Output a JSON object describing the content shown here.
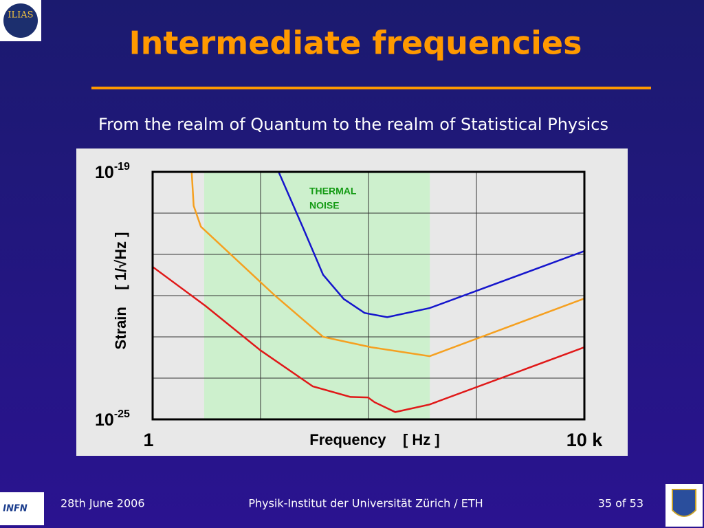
{
  "slide": {
    "title": "Intermediate frequencies",
    "subtitle": "From the realm of Quantum to the realm of Statistical Physics",
    "footer_left": "28th June 2006",
    "footer_center": "Physik-Institut der Universität Zürich / ETH",
    "footer_right": "35 of 53",
    "logo_top": "ILIAS",
    "logo_bottom_left": "INFN"
  },
  "chart_data": {
    "type": "line",
    "xlabel": "Frequency    [ Hz ]",
    "ylabel": "Strain    [ 1/√Hz ]",
    "xscale": "log",
    "yscale": "log",
    "xlim": [
      1,
      10000
    ],
    "ylim": [
      1e-25,
      1e-19
    ],
    "xticks": [
      1,
      {
        "value": 10000,
        "label": "10 k"
      }
    ],
    "yticks": [
      {
        "value": 1e-25,
        "label": "10",
        "sup": "-25"
      },
      {
        "value": 1e-19,
        "label": "10",
        "sup": "-19"
      }
    ],
    "xgrid": [
      10,
      100,
      1000
    ],
    "ygrid": [
      1e-24,
      1e-23,
      1e-22,
      1e-21,
      1e-20
    ],
    "grid": true,
    "band": {
      "xrange": [
        3,
        370
      ],
      "color": "#cdf0cd",
      "label": [
        "THERMAL",
        "NOISE"
      ],
      "label_color": "#139a13"
    },
    "series": [
      {
        "color": "#1515cc",
        "x": [
          14.7,
          24.5,
          38,
          59,
          92,
          149,
          369,
          10000
        ],
        "values": [
          1e-19,
          4.7e-21,
          3.2e-22,
          8.3e-23,
          3.8e-23,
          3e-23,
          5e-23,
          1.2e-21
        ]
      },
      {
        "color": "#f5a020",
        "x": [
          2.3,
          2.4,
          2.8,
          4.9,
          13.6,
          38,
          106,
          369,
          10000
        ],
        "values": [
          1e-19,
          1.5e-20,
          4.7e-21,
          1.2e-21,
          1e-22,
          1e-23,
          5.6e-24,
          3.4e-24,
          8.5e-23
        ]
      },
      {
        "color": "#e01818",
        "x": [
          1,
          3.1,
          10,
          30.5,
          68,
          99,
          114,
          177,
          369,
          10000
        ],
        "values": [
          5e-22,
          5.6e-23,
          4.7e-24,
          6.3e-25,
          3.5e-25,
          3.4e-25,
          2.6e-25,
          1.5e-25,
          2.3e-25,
          5.6e-24
        ]
      }
    ]
  }
}
